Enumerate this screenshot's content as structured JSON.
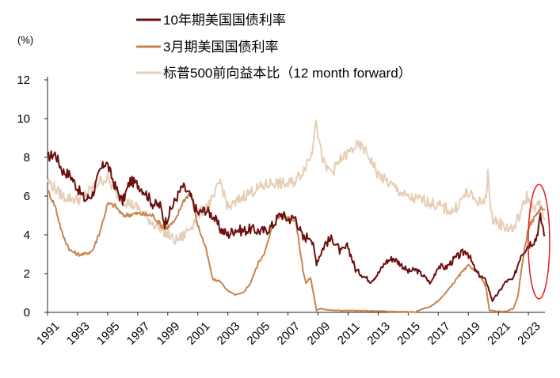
{
  "chart_data": {
    "type": "line",
    "title": "",
    "ylabel": "(%)",
    "xlabel": "",
    "ylim": [
      0,
      12
    ],
    "xlim": [
      1991,
      2024.1
    ],
    "yticks": [
      0,
      2,
      4,
      6,
      8,
      10,
      12
    ],
    "xticks": [
      1991,
      1993,
      1995,
      1997,
      1999,
      2001,
      2003,
      2005,
      2007,
      2009,
      2011,
      2013,
      2015,
      2017,
      2019,
      2021,
      2023
    ],
    "legend_position": "top-left",
    "series": [
      {
        "name": "10年期美国国债利率",
        "color": "#6b0f0f",
        "x": [
          1991,
          1991.5,
          1992,
          1992.5,
          1993,
          1993.5,
          1994,
          1994.5,
          1994.9,
          1995.5,
          1996,
          1996.5,
          1997,
          1997.5,
          1998,
          1998.5,
          1998.8,
          1999.5,
          2000,
          2000.5,
          2001,
          2001.5,
          2002,
          2002.5,
          2003,
          2003.5,
          2004,
          2004.5,
          2005,
          2005.5,
          2006,
          2006.5,
          2007,
          2007.5,
          2008,
          2008.5,
          2008.9,
          2009.5,
          2010,
          2010.5,
          2011,
          2011.5,
          2012,
          2012.5,
          2013,
          2013.5,
          2014,
          2014.5,
          2015,
          2015.5,
          2016,
          2016.5,
          2017,
          2017.5,
          2018,
          2018.5,
          2018.9,
          2019.5,
          2020.2,
          2020.6,
          2021,
          2021.5,
          2022,
          2022.5,
          2023,
          2023.5,
          2023.8,
          2024.1
        ],
        "values": [
          8.0,
          8.2,
          7.3,
          7.1,
          6.4,
          5.8,
          6.1,
          7.3,
          7.8,
          6.5,
          5.7,
          6.8,
          6.6,
          6.2,
          5.6,
          5.5,
          4.6,
          5.8,
          6.5,
          6.0,
          5.1,
          5.3,
          5.0,
          4.3,
          4.0,
          4.3,
          4.2,
          4.3,
          4.2,
          4.2,
          4.5,
          5.1,
          4.8,
          4.9,
          3.8,
          4.0,
          2.6,
          3.6,
          3.8,
          3.1,
          3.4,
          2.2,
          1.9,
          1.6,
          2.0,
          2.6,
          2.8,
          2.5,
          2.1,
          2.2,
          1.9,
          1.5,
          2.4,
          2.3,
          2.7,
          3.0,
          3.2,
          2.1,
          1.6,
          0.6,
          1.0,
          1.6,
          1.7,
          3.0,
          3.5,
          3.8,
          4.9,
          4.0
        ]
      },
      {
        "name": "3月期美国国债利率",
        "color": "#c9844e",
        "x": [
          1991,
          1991.5,
          1992,
          1992.5,
          1993,
          1993.5,
          1994,
          1994.5,
          1995,
          1995.5,
          1996,
          1997,
          1998,
          1998.8,
          1999.5,
          2000,
          2000.5,
          2001,
          2001.5,
          2002,
          2002.5,
          2003,
          2003.5,
          2004,
          2004.5,
          2005,
          2005.5,
          2006,
          2006.5,
          2007,
          2007.5,
          2008,
          2008.2,
          2008.5,
          2008.9,
          2009.2,
          2009.5,
          2010,
          2012,
          2014,
          2015.5,
          2016,
          2016.5,
          2017,
          2017.5,
          2018,
          2018.5,
          2019,
          2019.5,
          2020,
          2020.2,
          2020.4,
          2021,
          2021.5,
          2022,
          2022.3,
          2022.6,
          2023,
          2023.5,
          2023.8,
          2024.1
        ],
        "values": [
          6.3,
          5.5,
          4.0,
          3.2,
          3.0,
          3.0,
          3.2,
          4.2,
          5.6,
          5.5,
          5.0,
          5.1,
          5.0,
          4.3,
          4.7,
          5.7,
          6.2,
          4.5,
          3.4,
          1.7,
          1.6,
          1.1,
          0.9,
          1.0,
          1.5,
          2.5,
          3.2,
          4.5,
          5.0,
          4.9,
          4.8,
          2.2,
          1.5,
          1.8,
          0.1,
          0.2,
          0.15,
          0.1,
          0.08,
          0.04,
          0.02,
          0.2,
          0.3,
          0.6,
          1.0,
          1.5,
          2.0,
          2.4,
          2.2,
          1.6,
          1.2,
          0.1,
          0.05,
          0.05,
          0.2,
          0.8,
          2.6,
          4.4,
          5.0,
          5.4,
          5.3
        ]
      },
      {
        "name": "标普500前向益本比（12 month forward）",
        "color": "#e6cfb6",
        "x": [
          1991,
          1991.5,
          1992,
          1992.5,
          1993,
          1994,
          1994.5,
          1995,
          1995.5,
          1996,
          1996.5,
          1997,
          1997.5,
          1998,
          1998.5,
          1999,
          1999.5,
          2000,
          2000.5,
          2001,
          2001.5,
          2002,
          2002.5,
          2003,
          2003.5,
          2004,
          2005,
          2006,
          2007,
          2007.5,
          2008,
          2008.3,
          2008.6,
          2008.85,
          2009,
          2009.2,
          2009.5,
          2010,
          2010.5,
          2011,
          2011.5,
          2012,
          2012.5,
          2013,
          2014,
          2015,
          2016,
          2017,
          2018,
          2018.9,
          2019.5,
          2020,
          2020.2,
          2020.3,
          2020.5,
          2021,
          2021.5,
          2022,
          2022.5,
          2022.9,
          2023.3,
          2023.8,
          2024.1
        ],
        "values": [
          6.8,
          6.4,
          6.0,
          5.9,
          5.8,
          6.4,
          6.8,
          6.9,
          6.2,
          5.8,
          5.6,
          5.4,
          5.0,
          4.6,
          4.4,
          4.0,
          3.7,
          3.9,
          4.4,
          5.0,
          5.4,
          5.8,
          6.8,
          5.4,
          5.6,
          6.0,
          6.4,
          6.7,
          6.6,
          6.8,
          7.3,
          7.8,
          8.2,
          10.2,
          9.2,
          8.3,
          7.4,
          7.3,
          7.9,
          8.2,
          8.6,
          8.5,
          7.9,
          7.1,
          6.5,
          5.9,
          5.8,
          5.5,
          5.2,
          6.2,
          5.8,
          5.6,
          6.2,
          7.3,
          5.0,
          4.6,
          4.4,
          4.3,
          5.2,
          6.0,
          5.3,
          5.6,
          4.8
        ]
      }
    ],
    "annotation": {
      "type": "ellipse",
      "color": "#e02020",
      "x_from": 2023.2,
      "x_to": 2024.2,
      "y_from": 0.7,
      "y_to": 6.6
    }
  }
}
